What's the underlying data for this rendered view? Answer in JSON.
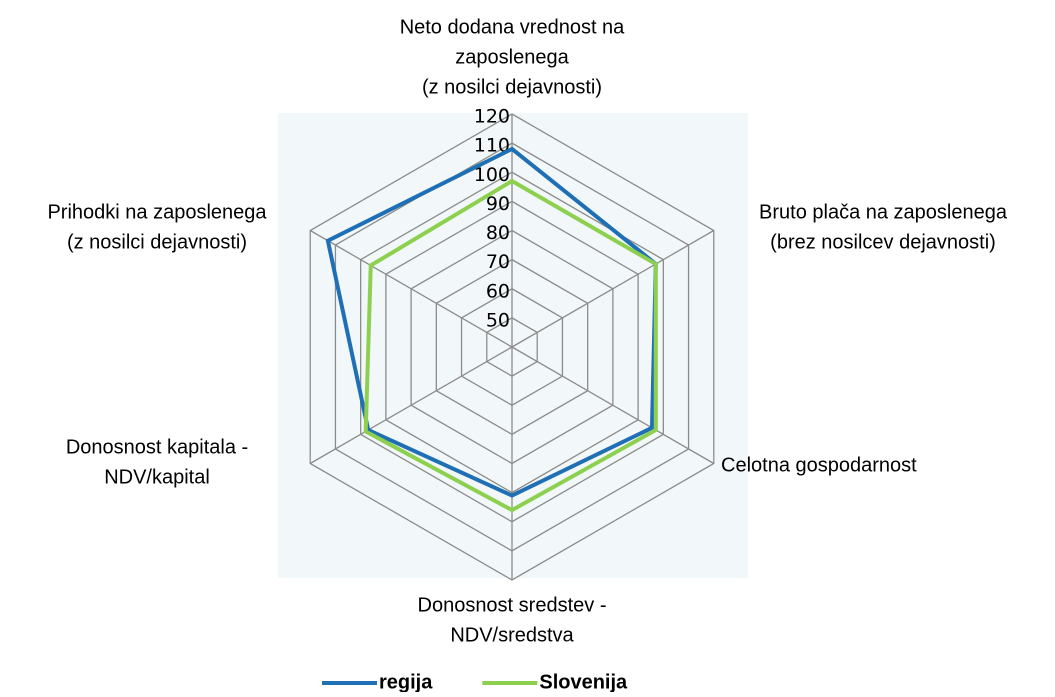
{
  "chart_data": {
    "type": "radar",
    "categories": [
      [
        "Neto dodana vrednost na",
        "zaposlenega",
        "(z nosilci dejavnosti)"
      ],
      [
        "Bruto plača na zaposlenega",
        "(brez nosilcev dejavnosti)"
      ],
      [
        "Celotna gospodarnost"
      ],
      [
        "Donosnost sredstev -",
        "NDV/sredstva"
      ],
      [
        "Donosnost kapitala -",
        "NDV/kapital"
      ],
      [
        "Prihodki na zaposlenega",
        "(z nosilci dejavnosti)"
      ]
    ],
    "series": [
      {
        "name": "regija",
        "color": "#1f6fb5",
        "values": [
          108,
          97,
          95.5,
          91,
          97,
          113
        ]
      },
      {
        "name": "Slovenija",
        "color": "#8dd04f",
        "values": [
          97,
          97,
          97,
          96,
          98,
          96
        ]
      }
    ],
    "ylim": [
      40,
      120
    ],
    "yticks": [
      50,
      60,
      70,
      80,
      90,
      100,
      110,
      120
    ]
  }
}
